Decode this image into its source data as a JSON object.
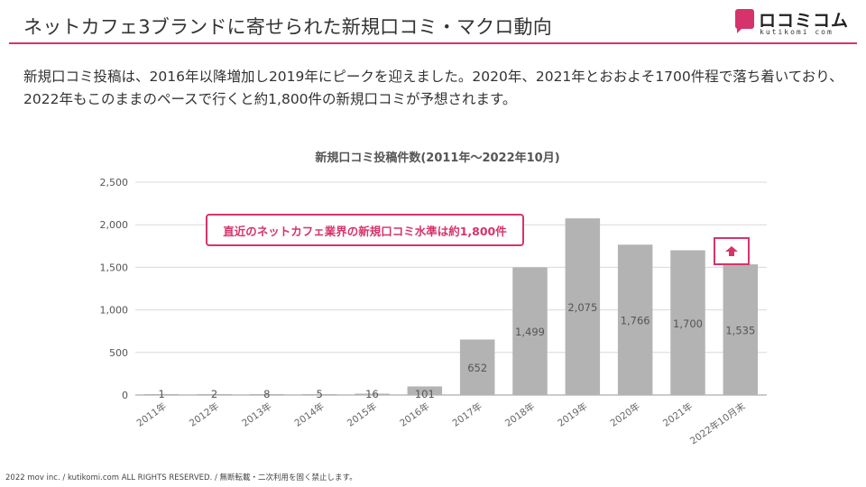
{
  "header": {
    "title": "ネットカフェ3ブランドに寄せられた新規口コミ・マクロ動向"
  },
  "logo": {
    "text": "ロコミコム",
    "sub": "kutikomi com"
  },
  "summary": "新規口コミ投稿は、2016年以降増加し2019年にピークを迎えました。2020年、2021年とおおよそ1700件程で落ち着いており、2022年もこのままのペースで行くと約1,800件の新規口コミが予想されます。",
  "annotation": {
    "text": "直近のネットカフェ業界の新規口コミ水準は約1,800件"
  },
  "footer": {
    "text": "2022 mov inc. / kutikomi.com ALL RIGHTS RESERVED. / 無断転載・二次利用を固く禁止します。"
  },
  "colors": {
    "accent": "#d6336c",
    "bar": "#b3b3b3",
    "grid": "#d9d9d9"
  },
  "icons": {
    "up_arrow": "up-arrow-icon"
  },
  "chart_data": {
    "type": "bar",
    "title": "新規口コミ投稿件数(2011年〜2022年10月)",
    "categories": [
      "2011年",
      "2012年",
      "2013年",
      "2014年",
      "2015年",
      "2016年",
      "2017年",
      "2018年",
      "2019年",
      "2020年",
      "2021年",
      "2022年10月末"
    ],
    "values": [
      1,
      2,
      8,
      5,
      16,
      101,
      652,
      1499,
      2075,
      1766,
      1700,
      1535
    ],
    "value_labels": [
      "1",
      "2",
      "8",
      "5",
      "16",
      "101",
      "652",
      "1,499",
      "2,075",
      "1,766",
      "1,700",
      "1,535"
    ],
    "yticks": [
      0,
      500,
      1000,
      1500,
      2000,
      2500
    ],
    "ytick_labels": [
      "0",
      "500",
      "1,000",
      "1,500",
      "2,000",
      "2,500"
    ],
    "ylim": [
      0,
      2500
    ],
    "xlabel": "",
    "ylabel": "",
    "grid": true,
    "legend": "none"
  }
}
